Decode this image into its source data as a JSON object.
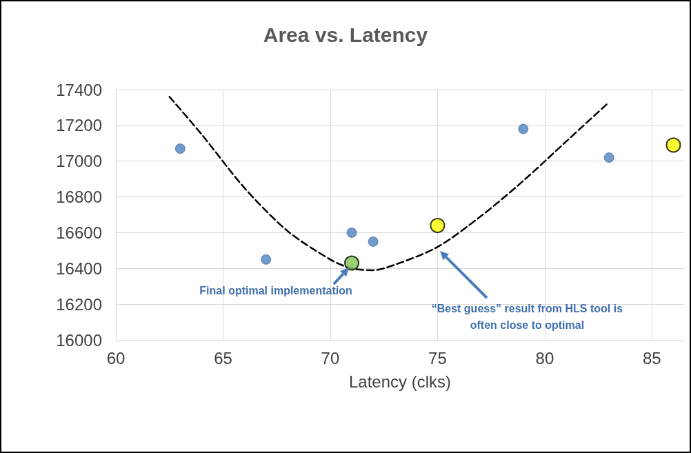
{
  "chart_data": {
    "type": "scatter",
    "title": "Area vs. Latency",
    "xlabel": "Latency (clks)",
    "xlim": [
      60,
      86.5
    ],
    "xticks": [
      60,
      65,
      70,
      75,
      80,
      85
    ],
    "ylim": [
      16000,
      17400
    ],
    "yticks": [
      16000,
      16200,
      16400,
      16600,
      16800,
      17000,
      17200,
      17400
    ],
    "grid": true,
    "marker": "circle",
    "series": [
      {
        "color": "#4f81bd",
        "x": [
          63,
          67,
          71,
          72,
          79,
          83
        ],
        "values": [
          17070,
          16450,
          16600,
          16550,
          17180,
          17020
        ]
      },
      {
        "color": "#7fc34f",
        "x": [
          71
        ],
        "values": [
          16430
        ]
      },
      {
        "color": "#ffff00",
        "x": [
          75,
          86
        ],
        "values": [
          16640,
          17090
        ]
      },
      {
        "type": "line",
        "color": "#000000",
        "line_style": "dashed",
        "marker": "none",
        "x": [
          62.5,
          64,
          66,
          68,
          70,
          71,
          72,
          73,
          75,
          77,
          79,
          81,
          83
        ],
        "values": [
          17360,
          17150,
          16850,
          16610,
          16450,
          16400,
          16390,
          16420,
          16520,
          16690,
          16890,
          17110,
          17330
        ]
      }
    ],
    "annotations": [
      {
        "text": "Final optimal implementation",
        "x": 71,
        "y": 16430
      },
      "“Best guess” result from HLS tool is often close to optimal"
    ]
  }
}
